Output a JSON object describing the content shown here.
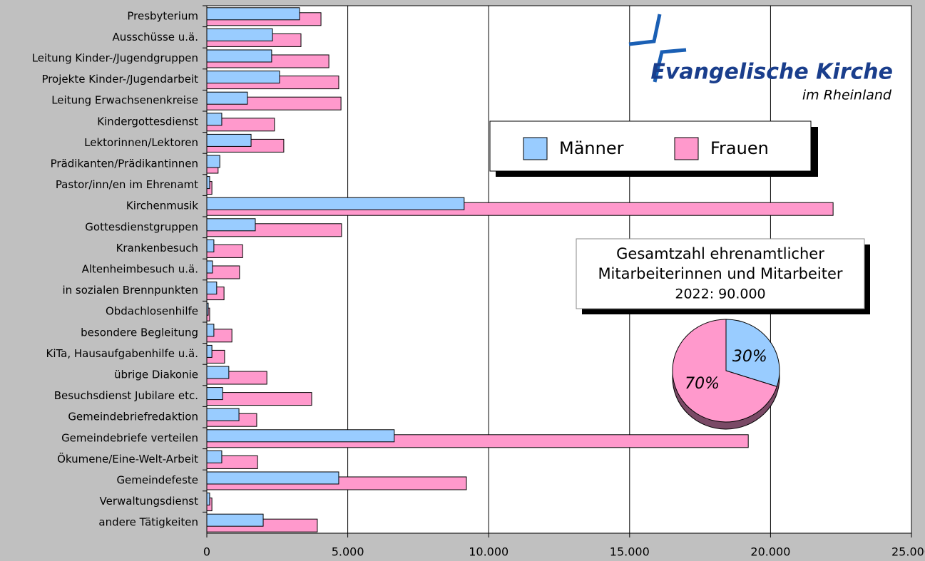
{
  "chart_data": [
    {
      "type": "barh",
      "categories": [
        "Presbyterium",
        "Ausschüsse u.ä.",
        "Leitung Kinder-/Jugendgruppen",
        "Projekte Kinder-/Jugendarbeit",
        "Leitung Erwachsenenkreise",
        "Kindergottesdienst",
        "Lektorinnen/Lektoren",
        "Prädikanten/Prädikantinnen",
        "Pastor/inn/en im Ehrenamt",
        "Kirchenmusik",
        "Gottesdienstgruppen",
        "Krankenbesuch",
        "Altenheimbesuch u.ä.",
        "in sozialen Brennpunkten",
        "Obdachlosenhilfe",
        "besondere Begleitung",
        "KiTa, Hausaufgabenhilfe u.ä.",
        "übrige Diakonie",
        "Besuchsdienst Jubilare etc.",
        "Gemeindebriefredaktion",
        "Gemeindebriefe verteilen",
        "Ökumene/Eine-Welt-Arbeit",
        "Gemeindefeste",
        "Verwaltungsdienst",
        "andere Tätigkeiten"
      ],
      "series": [
        {
          "name": "Männer",
          "color": "#99ccff",
          "values": [
            3290,
            2330,
            2300,
            2580,
            1440,
            530,
            1570,
            460,
            100,
            9130,
            1720,
            250,
            200,
            350,
            50,
            250,
            180,
            780,
            560,
            1140,
            6650,
            530,
            4680,
            100,
            2000
          ]
        },
        {
          "name": "Frauen",
          "color": "#ff99cc",
          "values": [
            4050,
            3340,
            4330,
            4680,
            4760,
            2400,
            2730,
            400,
            180,
            22220,
            4780,
            1270,
            1160,
            610,
            100,
            890,
            630,
            2130,
            3720,
            1770,
            19210,
            1800,
            9210,
            180,
            3920
          ]
        }
      ],
      "xlim": [
        0,
        25000
      ],
      "xticks": [
        0,
        {
          "value": 5000,
          "label": "5.000"
        },
        {
          "value": 10000,
          "label": "10.000"
        },
        {
          "value": 15000,
          "label": "15.000"
        },
        {
          "value": 20000,
          "label": "20.000"
        },
        {
          "value": 25000,
          "label": "25.000"
        }
      ],
      "grid": true,
      "annotation": [
        "Gesamtzahl ehrenamtlicher",
        "Mitarbeiterinnen und Mitarbeiter",
        "2022: 90.000"
      ],
      "logo": {
        "name": "Evangelische Kirche",
        "subtitle": "im Rheinland"
      }
    },
    {
      "type": "pie",
      "categories": [
        "Männer",
        "Frauen"
      ],
      "values": [
        30,
        70
      ],
      "value_labels": [
        "30%",
        "70%"
      ],
      "colors": [
        "#99ccff",
        "#ff99cc"
      ]
    }
  ]
}
